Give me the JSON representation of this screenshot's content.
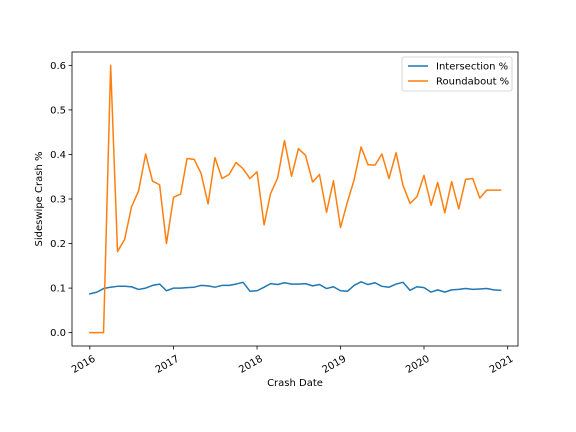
{
  "chart_data": {
    "type": "line",
    "title": "",
    "xlabel": "Crash Date",
    "ylabel": "Sideswipe Crash %",
    "x": [
      "2016-01",
      "2016-02",
      "2016-03",
      "2016-04",
      "2016-05",
      "2016-06",
      "2016-07",
      "2016-08",
      "2016-09",
      "2016-10",
      "2016-11",
      "2016-12",
      "2017-01",
      "2017-02",
      "2017-03",
      "2017-04",
      "2017-05",
      "2017-06",
      "2017-07",
      "2017-08",
      "2017-09",
      "2017-10",
      "2017-11",
      "2017-12",
      "2018-01",
      "2018-02",
      "2018-03",
      "2018-04",
      "2018-05",
      "2018-06",
      "2018-07",
      "2018-08",
      "2018-09",
      "2018-10",
      "2018-11",
      "2018-12",
      "2019-01",
      "2019-02",
      "2019-03",
      "2019-04",
      "2019-05",
      "2019-06",
      "2019-07",
      "2019-08",
      "2019-09",
      "2019-10",
      "2019-11",
      "2019-12",
      "2020-01",
      "2020-02",
      "2020-03",
      "2020-04",
      "2020-05",
      "2020-06",
      "2020-07",
      "2020-08",
      "2020-09",
      "2020-10",
      "2020-11",
      "2020-12"
    ],
    "series": [
      {
        "name": "Intersection %",
        "color": "#1f77b4",
        "values": [
          0.087,
          0.091,
          0.099,
          0.102,
          0.104,
          0.104,
          0.103,
          0.097,
          0.1,
          0.106,
          0.109,
          0.094,
          0.1,
          0.1,
          0.101,
          0.102,
          0.106,
          0.105,
          0.102,
          0.106,
          0.106,
          0.109,
          0.113,
          0.093,
          0.094,
          0.102,
          0.11,
          0.108,
          0.112,
          0.109,
          0.109,
          0.11,
          0.105,
          0.108,
          0.099,
          0.103,
          0.094,
          0.093,
          0.106,
          0.114,
          0.108,
          0.112,
          0.104,
          0.102,
          0.109,
          0.113,
          0.095,
          0.103,
          0.101,
          0.091,
          0.096,
          0.091,
          0.096,
          0.097,
          0.099,
          0.097,
          0.098,
          0.099,
          0.096,
          0.095
        ]
      },
      {
        "name": "Roundabout %",
        "color": "#ff7f0e",
        "values": [
          0.0,
          0.0,
          0.0,
          0.6,
          0.182,
          0.209,
          0.282,
          0.318,
          0.401,
          0.34,
          0.332,
          0.2,
          0.304,
          0.311,
          0.391,
          0.389,
          0.358,
          0.289,
          0.393,
          0.346,
          0.355,
          0.382,
          0.368,
          0.346,
          0.361,
          0.242,
          0.312,
          0.347,
          0.431,
          0.351,
          0.413,
          0.398,
          0.338,
          0.355,
          0.27,
          0.341,
          0.236,
          0.295,
          0.342,
          0.417,
          0.377,
          0.376,
          0.401,
          0.346,
          0.404,
          0.331,
          0.29,
          0.305,
          0.353,
          0.286,
          0.337,
          0.269,
          0.339,
          0.278,
          0.344,
          0.346,
          0.302,
          0.32,
          0.32,
          0.32
        ]
      }
    ],
    "xlim": [
      "2015-10-15",
      "2021-02-15"
    ],
    "ylim": [
      -0.03,
      0.63
    ],
    "xticks": [
      {
        "date": "2016-01-01",
        "label": "2016"
      },
      {
        "date": "2017-01-01",
        "label": "2017"
      },
      {
        "date": "2018-01-01",
        "label": "2018"
      },
      {
        "date": "2019-01-01",
        "label": "2019"
      },
      {
        "date": "2020-01-01",
        "label": "2020"
      },
      {
        "date": "2021-01-01",
        "label": "2021"
      }
    ],
    "yticks": [
      0.0,
      0.1,
      0.2,
      0.3,
      0.4,
      0.5,
      0.6
    ],
    "ytick_labels": [
      "0.0",
      "0.1",
      "0.2",
      "0.3",
      "0.4",
      "0.5",
      "0.6"
    ],
    "grid": false,
    "legend_position": "top-right"
  }
}
